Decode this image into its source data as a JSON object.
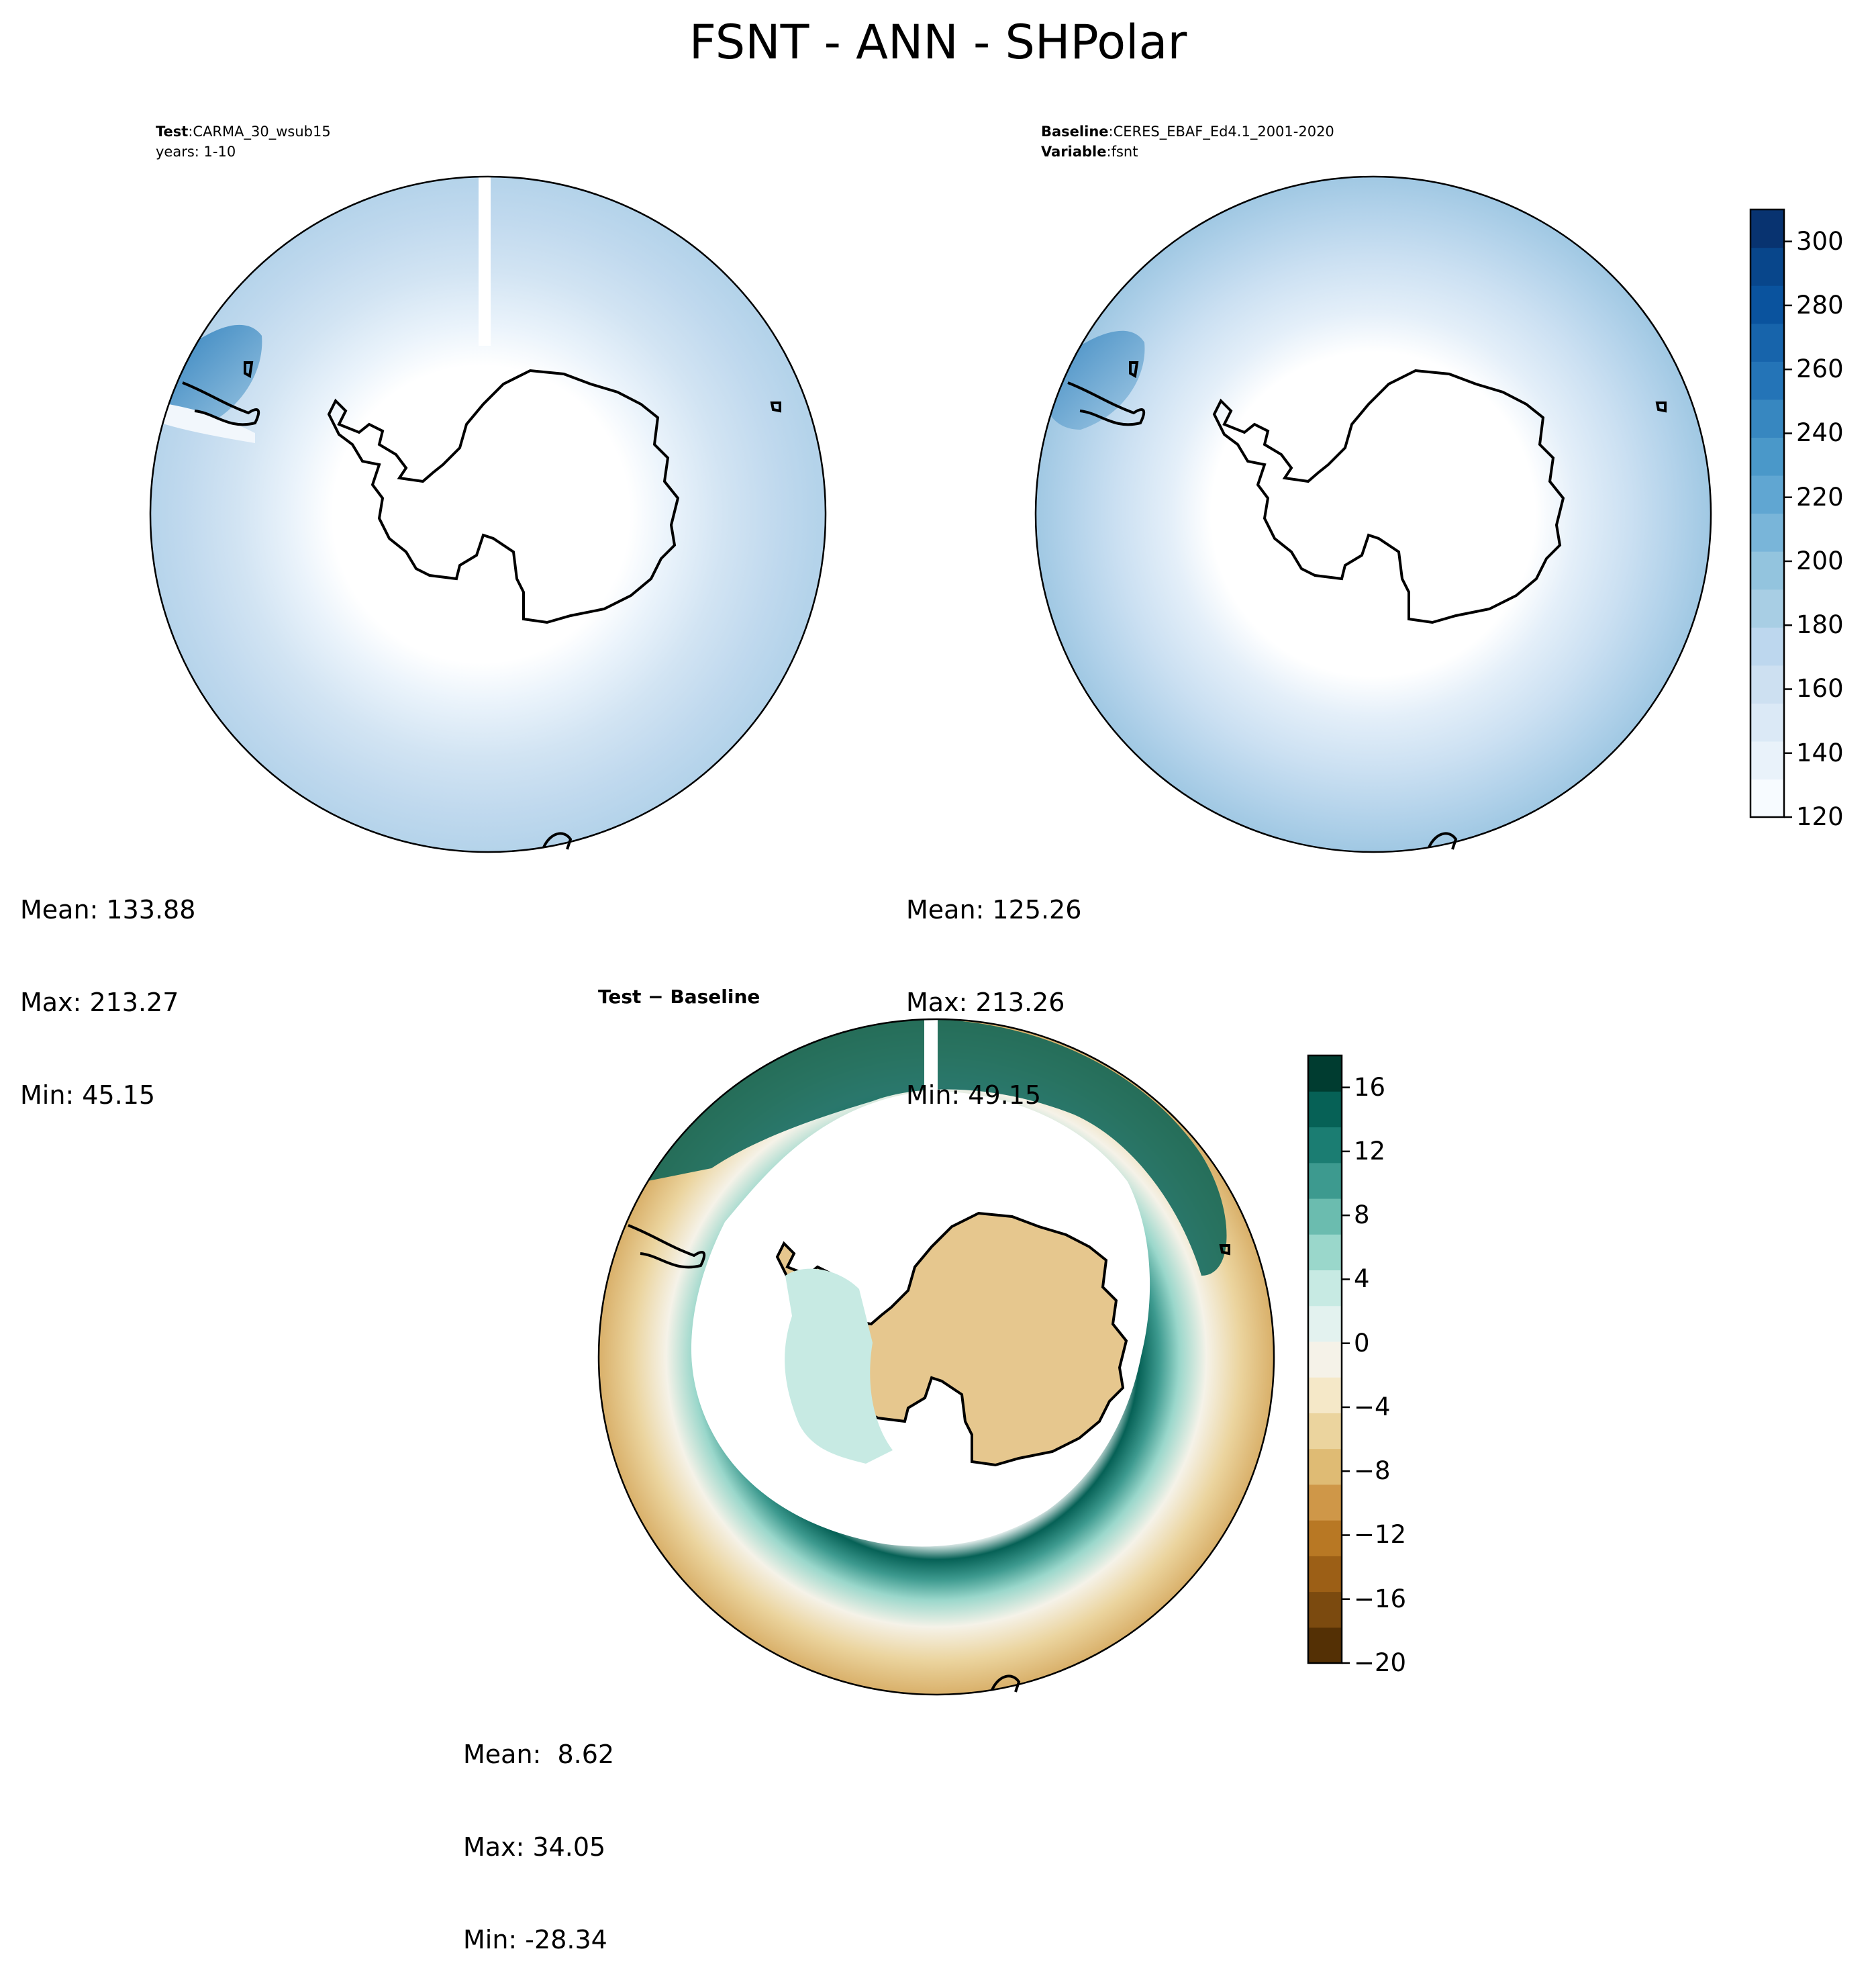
{
  "figure": {
    "title": "FSNT - ANN - SHPolar"
  },
  "panels": {
    "test": {
      "label_key": "Test",
      "label_value": "CARMA_30_wsub15",
      "line2": "years: 1-10",
      "mean": "Mean: 133.88",
      "max": "Max: 213.27",
      "min": "Min: 45.15"
    },
    "baseline": {
      "label_key": "Baseline",
      "label_value": "CERES_EBAF_Ed4.1_2001-2020",
      "line2_key": "Variable",
      "line2_value": "fsnt",
      "mean": "Mean: 125.26",
      "max": "Max: 213.26",
      "min": "Min: 49.15"
    },
    "diff": {
      "title_a": "Test",
      "title_op": "−",
      "title_b": "Baseline",
      "mean": "Mean:  8.62",
      "max": "Max: 34.05",
      "min": "Min: -28.34"
    }
  },
  "chart_data": [
    {
      "type": "heatmap",
      "projection": "south-polar-stereographic",
      "panel": "test",
      "colormap": "Blues",
      "colorbar": {
        "range": [
          120,
          310
        ],
        "ticks": [
          120,
          140,
          160,
          180,
          200,
          220,
          240,
          260,
          280,
          300
        ],
        "tick_labels": [
          "120",
          "140",
          "160",
          "180",
          "200",
          "220",
          "240",
          "260",
          "280",
          "300"
        ],
        "colors": [
          "#f7fbff",
          "#e9f2fa",
          "#dbe9f6",
          "#cde0f1",
          "#bdd7ee",
          "#a8cee4",
          "#93c4de",
          "#79b5d9",
          "#60a6d2",
          "#4a98c9",
          "#3787c0",
          "#2474b7",
          "#1764ab",
          "#0a539e",
          "#08468b",
          "#083370"
        ]
      },
      "stats": {
        "mean": 133.88,
        "max": 213.27,
        "min": 45.15
      }
    },
    {
      "type": "heatmap",
      "projection": "south-polar-stereographic",
      "panel": "baseline",
      "colormap": "Blues",
      "stats": {
        "mean": 125.26,
        "max": 213.26,
        "min": 49.15
      }
    },
    {
      "type": "heatmap",
      "projection": "south-polar-stereographic",
      "panel": "diff",
      "colormap": "BrBG",
      "colorbar": {
        "range": [
          -20,
          18
        ],
        "ticks": [
          -20,
          -16,
          -12,
          -8,
          -4,
          0,
          4,
          8,
          12,
          16
        ],
        "tick_labels": [
          "−20",
          "−16",
          "−12",
          "−8",
          "−4",
          "0",
          "4",
          "8",
          "12",
          "16"
        ],
        "colors": [
          "#543005",
          "#7b4a0f",
          "#9c5f16",
          "#b87824",
          "#cf9748",
          "#dfbb74",
          "#ebd49e",
          "#f5e8c8",
          "#f5f2e8",
          "#e3f2ef",
          "#c7eae3",
          "#9ad7cb",
          "#6bbcaf",
          "#3d9a8f",
          "#1b7d72",
          "#066156",
          "#003c30"
        ]
      },
      "stats": {
        "mean": 8.62,
        "max": 34.05,
        "min": -28.34
      }
    }
  ]
}
